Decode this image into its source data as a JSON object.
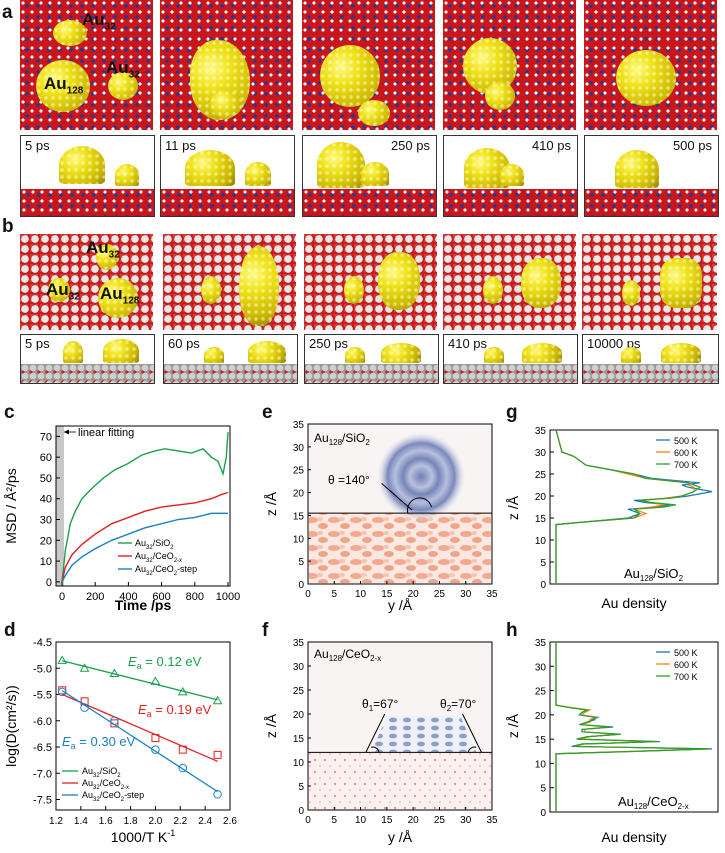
{
  "panels": {
    "a": "a",
    "b": "b",
    "c": "c",
    "d": "d",
    "e": "e",
    "f": "f",
    "g": "g",
    "h": "h"
  },
  "row_a": {
    "times": [
      "5 ps",
      "11 ps",
      "250 ps",
      "410 ps",
      "500 ps"
    ],
    "cluster_labels": {
      "au32_top": "Au",
      "au32_right": "Au",
      "au128": "Au",
      "sub32": "32",
      "sub128": "128"
    }
  },
  "row_b": {
    "times": [
      "5 ps",
      "60 ps",
      "250 ps",
      "410 ps",
      "10000 ps"
    ],
    "cluster_labels": {
      "au32_top": "Au",
      "au32_left": "Au",
      "au128": "Au",
      "sub32": "32",
      "sub128": "128"
    }
  },
  "chart_data": [
    {
      "id": "c",
      "type": "line",
      "xlabel": "Time /ps",
      "ylabel": "MSD / Å²/ps",
      "xlim": [
        0,
        1000
      ],
      "ylim": [
        -2,
        75
      ],
      "xticks": [
        "0",
        "200",
        "400",
        "600",
        "800",
        "1000"
      ],
      "yticks": [
        "0",
        "10",
        "20",
        "30",
        "40",
        "50",
        "60",
        "70"
      ],
      "annotation": "linear fitting",
      "series": [
        {
          "name": "Au32/SiO2",
          "name_main": "Au",
          "name_sub": "32",
          "name_rest": "/SiO",
          "name_sub2": "2",
          "color": "#1aa04a",
          "x": [
            0,
            20,
            50,
            80,
            120,
            180,
            250,
            320,
            400,
            480,
            560,
            620,
            700,
            780,
            850,
            900,
            940,
            970,
            990,
            1000
          ],
          "y": [
            0,
            15,
            28,
            34,
            40,
            45,
            50,
            54,
            57,
            61,
            63,
            64,
            63,
            62,
            64,
            60,
            58,
            52,
            60,
            72
          ]
        },
        {
          "name": "Au32/CeO2-x",
          "name_main": "Au",
          "name_sub": "32",
          "name_rest": "/CeO",
          "name_sub2": "2-x",
          "color": "#e41e1e",
          "x": [
            0,
            20,
            60,
            120,
            200,
            300,
            400,
            500,
            600,
            700,
            800,
            900,
            960,
            1000
          ],
          "y": [
            0,
            7,
            13,
            18,
            23,
            28,
            31,
            34,
            36,
            37,
            38,
            40,
            42,
            43
          ]
        },
        {
          "name": "Au32/CeO2-step",
          "name_main": "Au",
          "name_sub": "32",
          "name_rest": "/CeO",
          "name_sub2": "2",
          "name_rest2": "-step",
          "color": "#1a7fc4",
          "x": [
            0,
            20,
            60,
            120,
            200,
            300,
            400,
            500,
            600,
            700,
            800,
            900,
            1000
          ],
          "y": [
            0,
            3,
            8,
            12,
            16,
            20,
            23,
            26,
            28,
            30,
            31,
            33,
            33
          ]
        }
      ]
    },
    {
      "id": "d",
      "type": "scatter",
      "xlabel": "1000/T K",
      "xlabel_sup": "-1",
      "ylabel": "log(D(cm²/s))",
      "xlim": [
        1.2,
        2.6
      ],
      "ylim": [
        -7.7,
        -4.5
      ],
      "xticks": [
        "1.2",
        "1.4",
        "1.6",
        "1.8",
        "2.0",
        "2.2",
        "2.4",
        "2.6"
      ],
      "yticks": [
        "-4.5",
        "-5.0",
        "-5.5",
        "-6.0",
        "-6.5",
        "-7.0",
        "-7.5"
      ],
      "series": [
        {
          "name": "Au32/SiO2",
          "color": "#1aa04a",
          "marker": "triangle",
          "label": "= 0.12 eV",
          "x": [
            1.25,
            1.43,
            1.67,
            2.0,
            2.22,
            2.5
          ],
          "y": [
            -4.85,
            -5.0,
            -5.1,
            -5.25,
            -5.45,
            -5.62
          ]
        },
        {
          "name": "Au32/CeO2-x",
          "color": "#e41e1e",
          "marker": "square",
          "label": "= 0.19 eV",
          "x": [
            1.25,
            1.43,
            1.67,
            2.0,
            2.22,
            2.5
          ],
          "y": [
            -5.42,
            -5.63,
            -6.05,
            -6.33,
            -6.55,
            -6.65
          ]
        },
        {
          "name": "Au32/CeO2-step",
          "color": "#1a7fc4",
          "marker": "circle",
          "label": "= 0.30 eV",
          "x": [
            1.25,
            1.43,
            1.67,
            2.0,
            2.22,
            2.5
          ],
          "y": [
            -5.45,
            -5.75,
            -6.0,
            -6.55,
            -6.9,
            -7.4
          ]
        }
      ],
      "ea_symbol": "E",
      "ea_sub": "a"
    },
    {
      "id": "e",
      "type": "heatmap",
      "title_main": "Au",
      "title_sub": "128",
      "title_rest": "/SiO",
      "title_sub2": "2",
      "annotation": "θ =140°",
      "xlabel": "y /Å",
      "ylabel": "z /Å",
      "xlim": [
        0,
        35
      ],
      "ylim": [
        0,
        35
      ],
      "interface_z": 15.5,
      "xticks": [
        "0",
        "5",
        "10",
        "15",
        "20",
        "25",
        "30",
        "35"
      ],
      "yticks": [
        "0",
        "5",
        "10",
        "15",
        "20",
        "25",
        "30",
        "35"
      ]
    },
    {
      "id": "f",
      "type": "heatmap",
      "title_main": "Au",
      "title_sub": "128",
      "title_rest": "/CeO",
      "title_sub2": "2-x",
      "annotation1": "θ",
      "annotation1_sub": "1",
      "annotation1_rest": "=67°",
      "annotation2": "θ",
      "annotation2_sub": "2",
      "annotation2_rest": "=70°",
      "xlabel": "y /Å",
      "ylabel": "z /Å",
      "xlim": [
        0,
        35
      ],
      "ylim": [
        0,
        35
      ],
      "interface_z": 12,
      "xticks": [
        "0",
        "5",
        "10",
        "15",
        "20",
        "25",
        "30",
        "35"
      ],
      "yticks": [
        "0",
        "5",
        "10",
        "15",
        "20",
        "25",
        "30",
        "35"
      ]
    },
    {
      "id": "g",
      "type": "line",
      "xlabel": "Au density",
      "ylabel": "z /Å",
      "ylim": [
        0,
        35
      ],
      "yticks": [
        "0",
        "5",
        "10",
        "15",
        "20",
        "25",
        "30",
        "35"
      ],
      "label_main": "Au",
      "label_sub": "128",
      "label_rest": "/SiO",
      "label_sub2": "2",
      "series": [
        {
          "name": "500 K",
          "color": "#1f77b4",
          "z": [
            0,
            13.5,
            14,
            15,
            16,
            17,
            17.5,
            18,
            18.5,
            19,
            19.5,
            20,
            21,
            22,
            22.5,
            23,
            24,
            25,
            26,
            27,
            28,
            29,
            30,
            35
          ],
          "d": [
            0,
            0,
            0.4,
            1.2,
            1.4,
            1.2,
            1.7,
            1.9,
            1.5,
            1.3,
            1.9,
            2.2,
            2.6,
            2.2,
            2.1,
            2.4,
            1.6,
            1.3,
            0.9,
            0.5,
            0.4,
            0.3,
            0.1,
            0
          ]
        },
        {
          "name": "600 K",
          "color": "#ff7f0e",
          "z": [
            0,
            13.5,
            14,
            15,
            16,
            17,
            17.5,
            18,
            18.5,
            19,
            19.5,
            20,
            21,
            22,
            22.5,
            23,
            24,
            25,
            26,
            27,
            28,
            29,
            30,
            35
          ],
          "d": [
            0,
            0,
            0.4,
            1.3,
            1.5,
            1.3,
            1.6,
            1.8,
            1.6,
            1.4,
            1.8,
            2.1,
            2.3,
            2.3,
            2.2,
            2.2,
            1.5,
            1.2,
            0.9,
            0.5,
            0.4,
            0.3,
            0.1,
            0
          ]
        },
        {
          "name": "700 K",
          "color": "#2ca02c",
          "z": [
            0,
            13.5,
            14,
            15,
            16,
            17,
            17.5,
            18,
            18.5,
            19,
            19.5,
            20,
            21,
            22,
            22.5,
            23,
            24,
            25,
            26,
            27,
            28,
            29,
            30,
            35
          ],
          "d": [
            0,
            0,
            0.4,
            1.3,
            1.4,
            1.3,
            1.8,
            2.0,
            1.6,
            1.4,
            1.9,
            2.1,
            2.3,
            2.4,
            2.3,
            2.2,
            1.5,
            1.3,
            0.9,
            0.5,
            0.4,
            0.3,
            0.1,
            0
          ]
        }
      ]
    },
    {
      "id": "h",
      "type": "line",
      "xlabel": "Au density",
      "ylabel": "z /Å",
      "ylim": [
        0,
        35
      ],
      "yticks": [
        "0",
        "5",
        "10",
        "15",
        "20",
        "25",
        "30",
        "35"
      ],
      "label_main": "Au",
      "label_sub": "128",
      "label_rest": "/CeO",
      "label_sub2": "2-x",
      "series": [
        {
          "name": "500 K",
          "color": "#1f77b4",
          "z": [
            0,
            12,
            12.5,
            13,
            13.5,
            14,
            14.5,
            15,
            15.5,
            16,
            16.5,
            17,
            17.5,
            18,
            18.5,
            19,
            19.5,
            20,
            20.5,
            21,
            21.5,
            22,
            35
          ],
          "d": [
            0,
            0,
            3.2,
            6.0,
            0.6,
            1.0,
            4.0,
            0.8,
            1.2,
            2.4,
            1.0,
            1.0,
            2.2,
            0.9,
            1.2,
            1.4,
            1.6,
            0.9,
            1.0,
            1.2,
            0.5,
            0,
            0
          ]
        },
        {
          "name": "600 K",
          "color": "#ff7f0e",
          "z": [
            0,
            12,
            12.5,
            13,
            13.5,
            14,
            14.5,
            15,
            15.5,
            16,
            16.5,
            17,
            17.5,
            18,
            18.5,
            19,
            19.5,
            20,
            20.5,
            21,
            21.5,
            22,
            35
          ],
          "d": [
            0,
            0,
            3.0,
            5.8,
            0.7,
            1.1,
            3.8,
            0.9,
            1.3,
            2.3,
            1.1,
            1.1,
            2.0,
            1.0,
            1.3,
            1.3,
            1.5,
            1.0,
            1.1,
            1.3,
            0.6,
            0,
            0
          ]
        },
        {
          "name": "700 K",
          "color": "#2ca02c",
          "z": [
            0,
            12,
            12.5,
            13,
            13.5,
            14,
            14.5,
            15,
            15.5,
            16,
            16.5,
            17,
            17.5,
            18,
            18.5,
            19,
            19.5,
            20,
            20.5,
            21,
            21.5,
            22,
            35
          ],
          "d": [
            0,
            0,
            3.1,
            5.9,
            0.7,
            1.0,
            3.9,
            0.8,
            1.2,
            2.5,
            1.0,
            1.0,
            2.1,
            0.9,
            1.2,
            1.5,
            1.5,
            0.9,
            1.0,
            1.2,
            0.5,
            0,
            0
          ]
        }
      ]
    }
  ]
}
